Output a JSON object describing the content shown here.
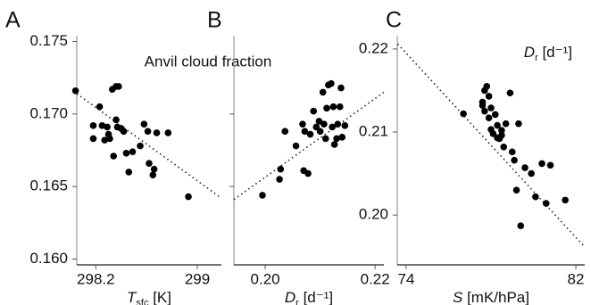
{
  "chart_data": [
    {
      "type": "scatter",
      "panel": "A",
      "annotation": "Anvil cloud fraction",
      "x_label": {
        "symbol": "T",
        "subscript": "sfc",
        "unit": " [K]"
      },
      "x": [
        298.04,
        298.18,
        298.23,
        298.18,
        298.25,
        298.29,
        298.27,
        298.3,
        298.31,
        298.33,
        298.36,
        298.38,
        298.36,
        298.37,
        298.4,
        298.42,
        298.44,
        298.49,
        298.46,
        298.58,
        298.61,
        298.62,
        298.66,
        298.65,
        298.68,
        298.77,
        298.93,
        298.55,
        298.34
      ],
      "values": [
        0.1716,
        0.1692,
        0.1705,
        0.1683,
        0.1692,
        0.1691,
        0.1682,
        0.1686,
        0.1683,
        0.1717,
        0.1719,
        0.1719,
        0.1696,
        0.1691,
        0.169,
        0.1688,
        0.1673,
        0.1674,
        0.166,
        0.1693,
        0.1688,
        0.1666,
        0.1662,
        0.1658,
        0.1687,
        0.1687,
        0.1643,
        0.1678,
        0.1671
      ],
      "color": "#000000",
      "fit": {
        "x": [
          298.05,
          299.19
        ],
        "y": [
          0.1714,
          0.1642
        ]
      },
      "xlim": [
        298.05,
        299.19
      ],
      "xticks": [
        298.2,
        299
      ],
      "ylim": [
        0.1596,
        0.1754
      ],
      "yticks": [
        0.175,
        {
          "value": 0.17,
          "label": "0.170"
        },
        0.165,
        {
          "value": 0.16,
          "label": "0.160"
        }
      ],
      "ytick_labels": true
    },
    {
      "type": "scatter",
      "panel": "B",
      "x_label": {
        "symbol": "D",
        "subscript": "r",
        "unit": " [d⁻¹]"
      },
      "x": [
        0.1995,
        0.2026,
        0.2028,
        0.2036,
        0.2056,
        0.2068,
        0.207,
        0.2072,
        0.2078,
        0.2082,
        0.2088,
        0.2093,
        0.2098,
        0.21,
        0.2105,
        0.2107,
        0.211,
        0.2115,
        0.212,
        0.2122,
        0.2124,
        0.2126,
        0.213,
        0.2132,
        0.2136,
        0.2138,
        0.214,
        0.2145,
        0.2112
      ],
      "values": [
        0.1644,
        0.1655,
        0.1662,
        0.1688,
        0.1678,
        0.1693,
        0.1661,
        0.1688,
        0.1659,
        0.1686,
        0.1702,
        0.1691,
        0.1695,
        0.1688,
        0.1715,
        0.1693,
        0.1683,
        0.172,
        0.1721,
        0.1691,
        0.1705,
        0.1679,
        0.1683,
        0.1693,
        0.1705,
        0.1718,
        0.1684,
        0.1692,
        0.1704
      ],
      "color": "#000000",
      "fit": {
        "x": [
          0.1943,
          0.2216
        ],
        "y": [
          0.1641,
          0.1715
        ]
      },
      "xlim": [
        0.1943,
        0.2216
      ],
      "xticks": [
        {
          "value": 0.2,
          "label": "0.20"
        },
        {
          "value": 0.22,
          "label": "0.22"
        }
      ],
      "ylim": [
        0.1596,
        0.1754
      ],
      "yticks": [
        0.17,
        0.165
      ],
      "ytick_labels": false
    },
    {
      "type": "scatter",
      "panel": "C",
      "y_label": {
        "symbol": "D",
        "subscript": "r",
        "unit": " [d⁻¹]"
      },
      "x_label": {
        "symbol": "S",
        "subscript": "",
        "unit": " [mK/hPa]"
      },
      "x": [
        76.7,
        77.6,
        77.6,
        77.7,
        77.7,
        77.8,
        77.9,
        77.9,
        78.0,
        78.0,
        78.1,
        78.2,
        78.3,
        78.3,
        78.4,
        78.5,
        78.5,
        78.6,
        78.7,
        78.9,
        79.0,
        79.1,
        79.2,
        79.3,
        79.4,
        79.6,
        79.9,
        80.1,
        80.4,
        80.6,
        80.8,
        81.5
      ],
      "values": [
        0.2122,
        0.2132,
        0.2136,
        0.2125,
        0.215,
        0.2155,
        0.2143,
        0.2117,
        0.2129,
        0.2103,
        0.2098,
        0.2121,
        0.2108,
        0.2093,
        0.2092,
        0.2096,
        0.2102,
        0.2082,
        0.211,
        0.2147,
        0.2076,
        0.2066,
        0.203,
        0.211,
        0.1987,
        0.2057,
        0.205,
        0.2022,
        0.2062,
        0.2014,
        0.206,
        0.2018
      ],
      "color": "#000000",
      "fit": {
        "x": [
          73.6,
          82.4
        ],
        "y": [
          0.2206,
          0.1962
        ]
      },
      "xlim": [
        73.58,
        82.42
      ],
      "xticks": [
        74,
        82
      ],
      "ylim": [
        0.194,
        0.2216
      ],
      "yticks": [
        0.22,
        0.21,
        {
          "value": 0.2,
          "label": "0.20"
        }
      ],
      "ytick_labels": true
    }
  ]
}
